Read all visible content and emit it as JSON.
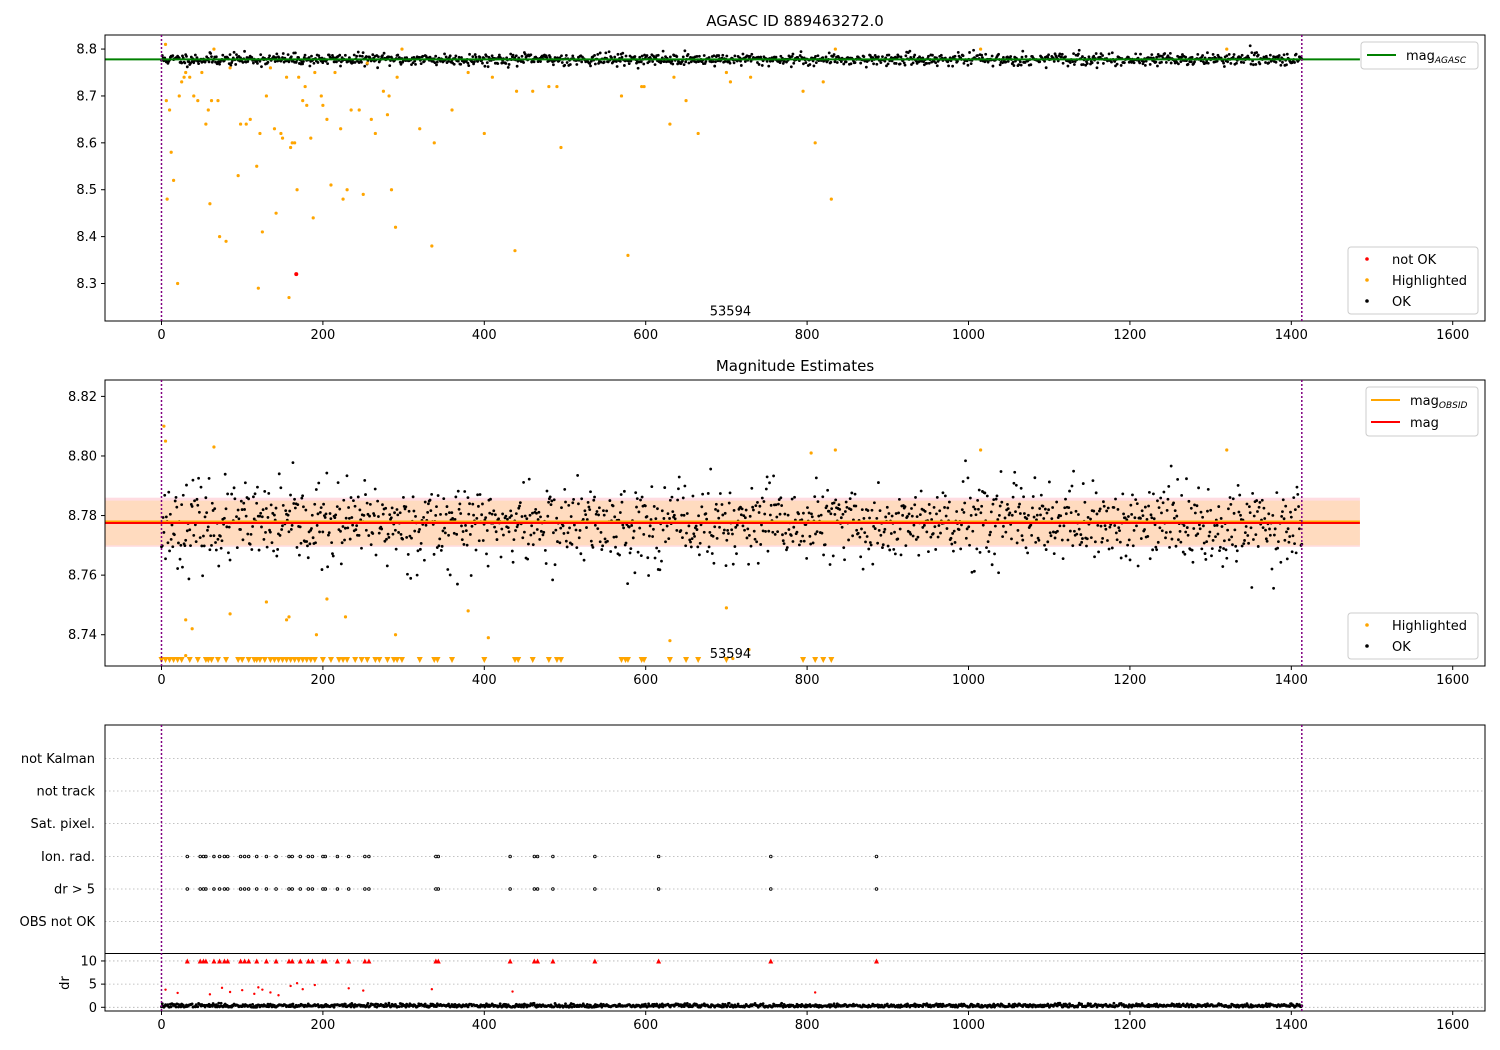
{
  "colors": {
    "ok": "#000000",
    "highlighted": "#ffa500",
    "not_ok": "#ff0000",
    "mag_agasc": "#008000",
    "mag_obsid": "#ffa500",
    "mag": "#ff0000",
    "band_outer": "#ffc0cb",
    "band_inner": "#ffdab9",
    "vline": "#800080",
    "grid": "#b0b0b0"
  },
  "chart_data": [
    {
      "type": "scatter",
      "title": "AGASC ID 889463272.0",
      "xlim": [
        -70,
        1640
      ],
      "ylim": [
        8.22,
        8.83
      ],
      "xticks": [
        0,
        200,
        400,
        600,
        800,
        1000,
        1200,
        1400,
        1600
      ],
      "yticks": [
        8.3,
        8.4,
        8.5,
        8.6,
        8.7,
        8.8
      ],
      "ytick_labels": [
        "8.3",
        "8.4",
        "8.5",
        "8.6",
        "8.7",
        "8.8"
      ],
      "xtick_labels": [
        "0",
        "200",
        "400",
        "600",
        "800",
        "1000",
        "1200",
        "1400",
        "1600"
      ],
      "vlines": [
        0,
        1413
      ],
      "annotation": {
        "text": "53594",
        "x": 705,
        "y": 8.24
      },
      "mag_agasc": 8.778,
      "mag_agasc_xrange": [
        -70,
        1485
      ],
      "ok_series": {
        "count": 1415,
        "x_start": 0,
        "x_end": 1413,
        "center": 8.778,
        "spread": 0.007,
        "seed": 11
      },
      "highlighted": [
        [
          5,
          8.81
        ],
        [
          6,
          8.69
        ],
        [
          7,
          8.48
        ],
        [
          10,
          8.67
        ],
        [
          12,
          8.58
        ],
        [
          15,
          8.52
        ],
        [
          20,
          8.3
        ],
        [
          22,
          8.7
        ],
        [
          25,
          8.73
        ],
        [
          28,
          8.74
        ],
        [
          30,
          8.75
        ],
        [
          35,
          8.74
        ],
        [
          40,
          8.7
        ],
        [
          45,
          8.69
        ],
        [
          50,
          8.75
        ],
        [
          55,
          8.64
        ],
        [
          58,
          8.67
        ],
        [
          60,
          8.47
        ],
        [
          62,
          8.69
        ],
        [
          65,
          8.8
        ],
        [
          70,
          8.69
        ],
        [
          72,
          8.4
        ],
        [
          80,
          8.39
        ],
        [
          85,
          8.76
        ],
        [
          95,
          8.53
        ],
        [
          98,
          8.64
        ],
        [
          105,
          8.64
        ],
        [
          110,
          8.65
        ],
        [
          118,
          8.55
        ],
        [
          120,
          8.29
        ],
        [
          122,
          8.62
        ],
        [
          125,
          8.41
        ],
        [
          130,
          8.7
        ],
        [
          135,
          8.76
        ],
        [
          140,
          8.63
        ],
        [
          142,
          8.45
        ],
        [
          148,
          8.62
        ],
        [
          150,
          8.61
        ],
        [
          155,
          8.74
        ],
        [
          158,
          8.27
        ],
        [
          160,
          8.59
        ],
        [
          162,
          8.6
        ],
        [
          165,
          8.6
        ],
        [
          168,
          8.5
        ],
        [
          170,
          8.74
        ],
        [
          175,
          8.69
        ],
        [
          178,
          8.72
        ],
        [
          180,
          8.68
        ],
        [
          185,
          8.61
        ],
        [
          188,
          8.44
        ],
        [
          190,
          8.75
        ],
        [
          198,
          8.7
        ],
        [
          200,
          8.68
        ],
        [
          205,
          8.65
        ],
        [
          210,
          8.51
        ],
        [
          215,
          8.75
        ],
        [
          222,
          8.63
        ],
        [
          225,
          8.48
        ],
        [
          230,
          8.5
        ],
        [
          235,
          8.67
        ],
        [
          245,
          8.67
        ],
        [
          250,
          8.49
        ],
        [
          255,
          8.77
        ],
        [
          260,
          8.65
        ],
        [
          265,
          8.62
        ],
        [
          275,
          8.71
        ],
        [
          280,
          8.66
        ],
        [
          282,
          8.7
        ],
        [
          285,
          8.5
        ],
        [
          290,
          8.42
        ],
        [
          292,
          8.74
        ],
        [
          298,
          8.8
        ],
        [
          320,
          8.63
        ],
        [
          335,
          8.38
        ],
        [
          338,
          8.6
        ],
        [
          360,
          8.67
        ],
        [
          380,
          8.75
        ],
        [
          400,
          8.62
        ],
        [
          410,
          8.74
        ],
        [
          438,
          8.37
        ],
        [
          440,
          8.71
        ],
        [
          460,
          8.71
        ],
        [
          480,
          8.72
        ],
        [
          490,
          8.72
        ],
        [
          495,
          8.59
        ],
        [
          570,
          8.7
        ],
        [
          578,
          8.36
        ],
        [
          595,
          8.72
        ],
        [
          598,
          8.72
        ],
        [
          630,
          8.64
        ],
        [
          635,
          8.74
        ],
        [
          650,
          8.69
        ],
        [
          665,
          8.62
        ],
        [
          700,
          8.75
        ],
        [
          705,
          8.73
        ],
        [
          730,
          8.74
        ],
        [
          795,
          8.71
        ],
        [
          810,
          8.6
        ],
        [
          820,
          8.73
        ],
        [
          830,
          8.48
        ],
        [
          835,
          8.8
        ],
        [
          1015,
          8.8
        ],
        [
          1320,
          8.8
        ]
      ],
      "not_ok": [
        [
          167,
          8.32
        ]
      ],
      "legend_top": [
        {
          "label": "mag",
          "sub": "AGASC",
          "kind": "line",
          "color_key": "mag_agasc"
        }
      ],
      "legend_bottom": [
        {
          "label": "not OK",
          "color_key": "not_ok"
        },
        {
          "label": "Highlighted",
          "color_key": "highlighted"
        },
        {
          "label": "OK",
          "color_key": "ok"
        }
      ]
    },
    {
      "type": "scatter",
      "title": "Magnitude Estimates",
      "xlim": [
        -70,
        1640
      ],
      "ylim": [
        8.7295,
        8.8255
      ],
      "xticks": [
        0,
        200,
        400,
        600,
        800,
        1000,
        1200,
        1400,
        1600
      ],
      "yticks": [
        8.74,
        8.76,
        8.78,
        8.8,
        8.82
      ],
      "ytick_labels": [
        "8.74",
        "8.76",
        "8.78",
        "8.80",
        "8.82"
      ],
      "xtick_labels": [
        "0",
        "200",
        "400",
        "600",
        "800",
        "1000",
        "1200",
        "1400",
        "1600"
      ],
      "vlines": [
        0,
        1413
      ],
      "annotation": {
        "text": "53594",
        "x": 705,
        "y": 8.7335
      },
      "mag": 8.7775,
      "mag_obsid": 8.778,
      "line_xrange": [
        -70,
        1485
      ],
      "band_outer": [
        8.7695,
        8.786
      ],
      "band_inner": [
        8.77,
        8.785
      ],
      "ok_series": {
        "count": 1415,
        "x_start": 0,
        "x_end": 1413,
        "center": 8.777,
        "spread": 0.0075,
        "seed": 23
      },
      "highlighted": [
        [
          3,
          8.81
        ],
        [
          5,
          8.805
        ],
        [
          30,
          8.745
        ],
        [
          38,
          8.742
        ],
        [
          65,
          8.803
        ],
        [
          85,
          8.747
        ],
        [
          130,
          8.751
        ],
        [
          155,
          8.745
        ],
        [
          158,
          8.746
        ],
        [
          192,
          8.74
        ],
        [
          205,
          8.752
        ],
        [
          228,
          8.746
        ],
        [
          290,
          8.74
        ],
        [
          380,
          8.748
        ],
        [
          405,
          8.739
        ],
        [
          630,
          8.738
        ],
        [
          700,
          8.749
        ],
        [
          708,
          8.732
        ],
        [
          728,
          8.735
        ],
        [
          805,
          8.801
        ],
        [
          835,
          8.802
        ],
        [
          1015,
          8.802
        ],
        [
          1320,
          8.802
        ],
        [
          30,
          8.733
        ]
      ],
      "below_axis_markers_x": [
        0,
        5,
        10,
        15,
        20,
        25,
        35,
        45,
        55,
        58,
        62,
        70,
        80,
        95,
        100,
        108,
        115,
        118,
        122,
        128,
        135,
        140,
        145,
        150,
        155,
        160,
        165,
        170,
        175,
        180,
        185,
        190,
        200,
        210,
        220,
        225,
        230,
        240,
        248,
        255,
        265,
        270,
        280,
        288,
        292,
        298,
        320,
        338,
        342,
        360,
        400,
        438,
        442,
        460,
        480,
        490,
        495,
        570,
        575,
        578,
        595,
        598,
        630,
        650,
        665,
        700,
        795,
        810,
        820,
        830
      ],
      "legend_top": [
        {
          "label": "mag",
          "sub": "OBSID",
          "kind": "line",
          "color_key": "mag_obsid"
        },
        {
          "label": "mag",
          "sub": "",
          "kind": "line",
          "color_key": "mag"
        }
      ],
      "legend_bottom": [
        {
          "label": "Highlighted",
          "color_key": "highlighted"
        },
        {
          "label": "OK",
          "color_key": "ok"
        }
      ]
    },
    {
      "type": "scatter",
      "xlim": [
        -70,
        1640
      ],
      "xticks": [
        0,
        200,
        400,
        600,
        800,
        1000,
        1200,
        1400,
        1600
      ],
      "xtick_labels": [
        "0",
        "200",
        "400",
        "600",
        "800",
        "1000",
        "1200",
        "1400",
        "1600"
      ],
      "vlines": [
        0,
        1413
      ],
      "flag_categories": [
        "not Kalman",
        "not track",
        "Sat. pixel.",
        "Ion. rad.",
        "dr > 5",
        "OBS not OK"
      ],
      "flagged_x": [
        32,
        48,
        52,
        55,
        65,
        72,
        78,
        82,
        98,
        103,
        108,
        118,
        130,
        142,
        158,
        162,
        172,
        182,
        187,
        200,
        203,
        218,
        232,
        252,
        257,
        340,
        343,
        432,
        462,
        466,
        485,
        537,
        616,
        755,
        886
      ],
      "flags_set": [
        "Ion. rad.",
        "dr > 5"
      ],
      "dr": {
        "ylabel": "dr",
        "ylim": [
          -0.8,
          11.5
        ],
        "yticks": [
          0,
          5,
          10
        ],
        "ytick_labels": [
          "0",
          "5",
          "10"
        ],
        "clip_value": 10,
        "series": {
          "count": 1415,
          "x_start": 0,
          "x_end": 1413,
          "center": 0.35,
          "spread": 0.25,
          "seed": 37
        },
        "red_points": [
          [
            5,
            3.8
          ],
          [
            20,
            3.1
          ],
          [
            60,
            2.8
          ],
          [
            75,
            4.2
          ],
          [
            85,
            3.3
          ],
          [
            100,
            3.7
          ],
          [
            115,
            2.9
          ],
          [
            120,
            4.3
          ],
          [
            125,
            3.8
          ],
          [
            135,
            3.2
          ],
          [
            145,
            2.6
          ],
          [
            160,
            4.6
          ],
          [
            168,
            5.2
          ],
          [
            175,
            3.9
          ],
          [
            190,
            4.8
          ],
          [
            232,
            4.1
          ],
          [
            250,
            3.6
          ],
          [
            335,
            3.9
          ],
          [
            435,
            3.4
          ],
          [
            810,
            3.2
          ]
        ]
      }
    }
  ]
}
